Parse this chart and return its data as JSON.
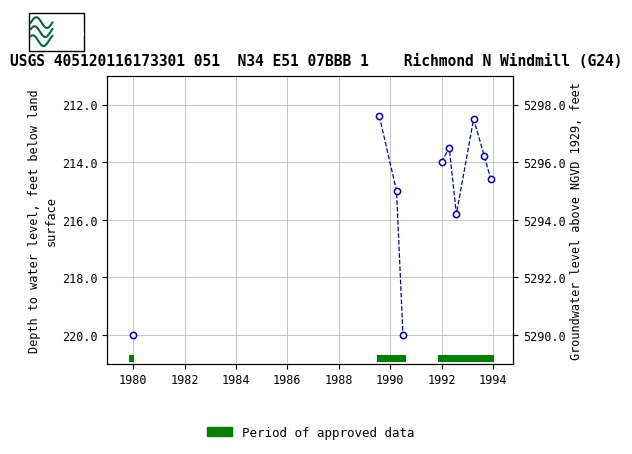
{
  "title": "USGS 405120116173301 051  N34 E51 07BBB 1    Richmond N Windmill (G24)",
  "ylabel_left": "Depth to water level, feet below land\nsurface",
  "ylabel_right": "Groundwater level above NGVD 1929, feet",
  "segments": [
    {
      "x": [
        1980.0
      ],
      "y": [
        220.0
      ]
    },
    {
      "x": [
        1989.58,
        1990.25,
        1990.5
      ],
      "y": [
        212.4,
        215.0,
        220.0
      ]
    },
    {
      "x": [
        1992.0,
        1992.3,
        1992.58,
        1993.25,
        1993.67,
        1993.92
      ],
      "y": [
        214.0,
        213.5,
        215.8,
        212.5,
        213.8,
        214.6
      ]
    }
  ],
  "xlim": [
    1979.0,
    1994.8
  ],
  "ylim_left": [
    221.0,
    211.0
  ],
  "ylim_right": [
    5289.0,
    5299.0
  ],
  "yticks_left": [
    212.0,
    214.0,
    216.0,
    218.0,
    220.0
  ],
  "yticks_right": [
    5290.0,
    5292.0,
    5294.0,
    5296.0,
    5298.0
  ],
  "xticks": [
    1980,
    1982,
    1984,
    1986,
    1988,
    1990,
    1992,
    1994
  ],
  "line_color": "#0000BB",
  "marker_color": "#0000BB",
  "grid_color": "#BBBBBB",
  "bg_color": "#FFFFFF",
  "header_color": "#006633",
  "approved_bars": [
    {
      "x_start": 1979.85,
      "x_end": 1980.05
    },
    {
      "x_start": 1989.5,
      "x_end": 1990.6
    },
    {
      "x_start": 1991.85,
      "x_end": 1994.05
    }
  ],
  "approved_color": "#008000",
  "legend_label": "Period of approved data",
  "title_fontsize": 10.5,
  "axis_fontsize": 8.5,
  "tick_fontsize": 8.5
}
